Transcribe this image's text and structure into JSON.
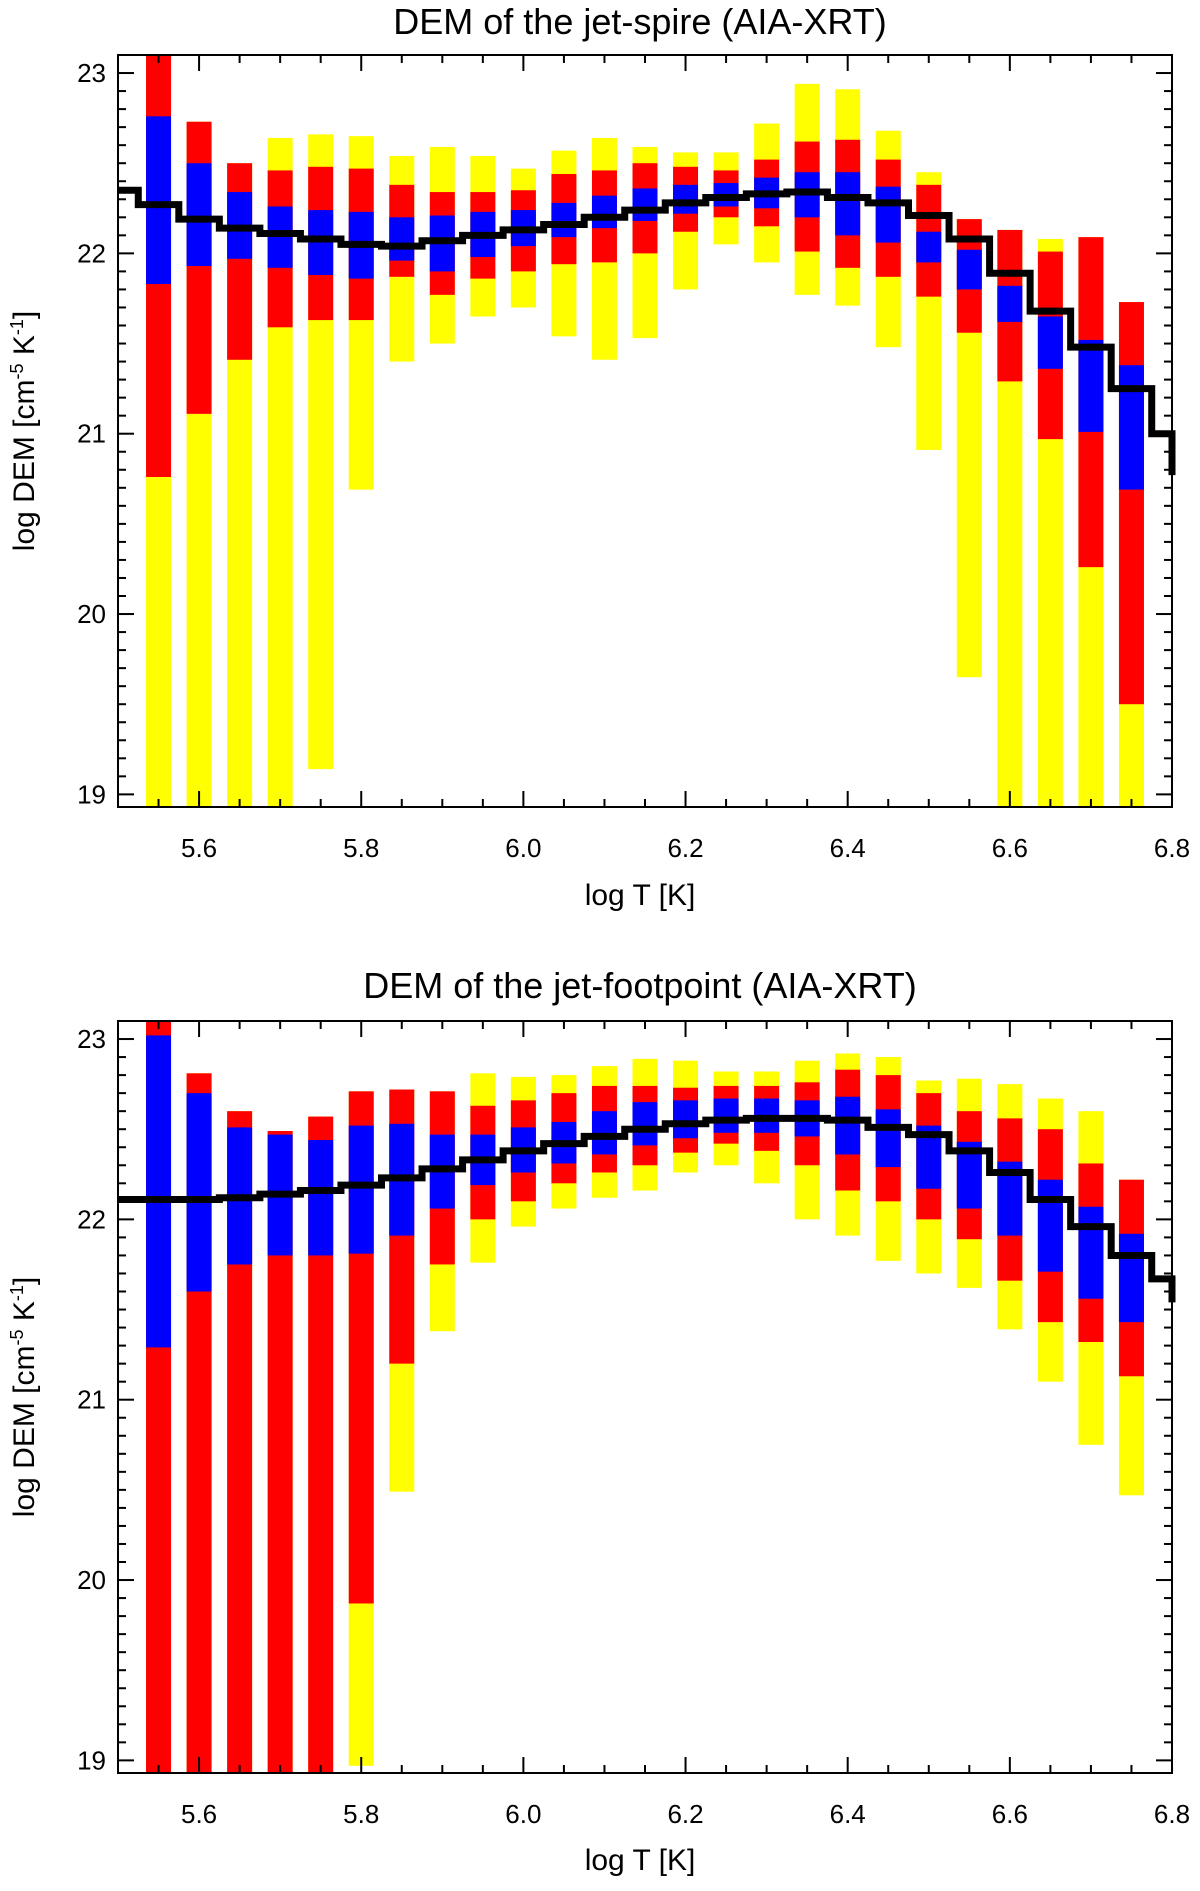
{
  "colors": {
    "outer": "#ffff00",
    "middle": "#ff0000",
    "inner": "#0000ff",
    "dem": "#000000"
  },
  "chart_data": [
    {
      "type": "bar",
      "title": "DEM of the jet-spire (AIA-XRT)",
      "xlabel": "log T [K]",
      "ylabel_main": "log DEM [cm",
      "ylabel_sup1": "-5",
      "ylabel_mid": " K",
      "ylabel_sup2": "-1",
      "ylabel_end": "]",
      "xlim": [
        5.5,
        6.8
      ],
      "ylim": [
        18.93,
        23.1
      ],
      "xticks": [
        5.6,
        5.8,
        6.0,
        6.2,
        6.4,
        6.6,
        6.8
      ],
      "xtick_labels": [
        "5.6",
        "5.8",
        "6.0",
        "6.2",
        "6.4",
        "6.6",
        "6.8"
      ],
      "yticks": [
        19,
        20,
        21,
        22,
        23
      ],
      "ytick_labels": [
        "19",
        "20",
        "21",
        "22",
        "23"
      ],
      "x": [
        5.55,
        5.6,
        5.65,
        5.7,
        5.75,
        5.8,
        5.85,
        5.9,
        5.95,
        6.0,
        6.05,
        6.1,
        6.15,
        6.2,
        6.25,
        6.3,
        6.35,
        6.4,
        6.45,
        6.5,
        6.55,
        6.6,
        6.65,
        6.7,
        6.75
      ],
      "outer_low": [
        18.93,
        18.93,
        18.93,
        18.93,
        19.14,
        20.69,
        21.4,
        21.5,
        21.65,
        21.7,
        21.54,
        21.41,
        21.53,
        21.8,
        22.05,
        21.95,
        21.77,
        21.71,
        21.48,
        20.91,
        19.65,
        18.93,
        18.93,
        18.93,
        18.93
      ],
      "middle_low": [
        20.76,
        21.11,
        21.41,
        21.59,
        21.63,
        21.63,
        21.87,
        21.77,
        21.86,
        21.9,
        21.94,
        21.95,
        22.0,
        22.12,
        22.2,
        22.15,
        22.01,
        21.92,
        21.87,
        21.76,
        21.56,
        21.29,
        20.97,
        20.26,
        19.5
      ],
      "inner_low": [
        21.83,
        21.93,
        21.97,
        21.92,
        21.88,
        21.86,
        21.96,
        21.9,
        21.98,
        22.04,
        22.09,
        22.14,
        22.18,
        22.22,
        22.26,
        22.25,
        22.2,
        22.1,
        22.06,
        21.95,
        21.8,
        21.62,
        21.36,
        21.01,
        20.69
      ],
      "inner_high": [
        22.76,
        22.5,
        22.34,
        22.26,
        22.24,
        22.23,
        22.2,
        22.21,
        22.23,
        22.24,
        22.28,
        22.32,
        22.36,
        22.38,
        22.39,
        22.42,
        22.45,
        22.45,
        22.37,
        22.12,
        22.02,
        21.82,
        21.65,
        21.52,
        21.38
      ],
      "middle_high": [
        23.1,
        22.73,
        22.5,
        22.46,
        22.48,
        22.47,
        22.38,
        22.34,
        22.34,
        22.35,
        22.44,
        22.46,
        22.5,
        22.48,
        22.46,
        22.52,
        22.62,
        22.63,
        22.52,
        22.38,
        22.19,
        22.13,
        22.01,
        22.09,
        21.73
      ],
      "outer_high": [
        23.1,
        22.73,
        22.5,
        22.64,
        22.66,
        22.65,
        22.54,
        22.59,
        22.54,
        22.47,
        22.57,
        22.64,
        22.59,
        22.56,
        22.56,
        22.72,
        22.94,
        22.91,
        22.68,
        22.45,
        22.19,
        22.13,
        22.08,
        22.09,
        21.73
      ],
      "dem_edges": [
        5.5,
        5.525,
        5.575,
        5.625,
        5.675,
        5.725,
        5.775,
        5.825,
        5.875,
        5.925,
        5.975,
        6.025,
        6.075,
        6.125,
        6.175,
        6.225,
        6.275,
        6.325,
        6.375,
        6.425,
        6.475,
        6.525,
        6.575,
        6.625,
        6.675,
        6.725,
        6.775,
        6.8
      ],
      "dem_values": [
        22.35,
        22.27,
        22.19,
        22.14,
        22.11,
        22.08,
        22.05,
        22.04,
        22.07,
        22.1,
        22.13,
        22.16,
        22.2,
        22.24,
        22.28,
        22.31,
        22.33,
        22.34,
        22.31,
        22.28,
        22.21,
        22.08,
        21.89,
        21.68,
        21.48,
        21.25,
        21.0,
        20.77
      ]
    },
    {
      "type": "bar",
      "title": "DEM of the jet-footpoint (AIA-XRT)",
      "xlabel": "log T [K]",
      "ylabel_main": "log DEM [cm",
      "ylabel_sup1": "-5",
      "ylabel_mid": " K",
      "ylabel_sup2": "-1",
      "ylabel_end": "]",
      "xlim": [
        5.5,
        6.8
      ],
      "ylim": [
        18.93,
        23.1
      ],
      "xticks": [
        5.6,
        5.8,
        6.0,
        6.2,
        6.4,
        6.6,
        6.8
      ],
      "xtick_labels": [
        "5.6",
        "5.8",
        "6.0",
        "6.2",
        "6.4",
        "6.6",
        "6.8"
      ],
      "yticks": [
        19,
        20,
        21,
        22,
        23
      ],
      "ytick_labels": [
        "19",
        "20",
        "21",
        "22",
        "23"
      ],
      "x": [
        5.55,
        5.6,
        5.65,
        5.7,
        5.75,
        5.8,
        5.85,
        5.9,
        5.95,
        6.0,
        6.05,
        6.1,
        6.15,
        6.2,
        6.25,
        6.3,
        6.35,
        6.4,
        6.45,
        6.5,
        6.55,
        6.6,
        6.65,
        6.7,
        6.75
      ],
      "outer_low": [
        18.93,
        18.93,
        18.93,
        18.93,
        18.93,
        18.97,
        20.49,
        21.38,
        21.76,
        21.96,
        22.06,
        22.12,
        22.16,
        22.26,
        22.3,
        22.2,
        22.0,
        21.91,
        21.77,
        21.7,
        21.62,
        21.39,
        21.1,
        20.75,
        20.47
      ],
      "middle_low": [
        18.93,
        18.93,
        18.93,
        18.93,
        18.93,
        19.87,
        21.2,
        21.75,
        22.0,
        22.1,
        22.2,
        22.26,
        22.3,
        22.37,
        22.42,
        22.38,
        22.3,
        22.16,
        22.1,
        22.0,
        21.89,
        21.66,
        21.43,
        21.32,
        21.13
      ],
      "inner_low": [
        21.29,
        21.6,
        21.75,
        21.8,
        21.8,
        21.81,
        21.91,
        22.06,
        22.19,
        22.26,
        22.31,
        22.36,
        22.41,
        22.45,
        22.48,
        22.48,
        22.46,
        22.36,
        22.29,
        22.17,
        22.06,
        21.91,
        21.71,
        21.56,
        21.43
      ],
      "inner_high": [
        23.02,
        22.7,
        22.51,
        22.47,
        22.44,
        22.52,
        22.53,
        22.47,
        22.47,
        22.51,
        22.54,
        22.6,
        22.65,
        22.66,
        22.67,
        22.67,
        22.66,
        22.68,
        22.61,
        22.52,
        22.43,
        22.32,
        22.22,
        22.07,
        21.92
      ],
      "middle_high": [
        23.1,
        22.81,
        22.6,
        22.49,
        22.57,
        22.71,
        22.72,
        22.71,
        22.63,
        22.66,
        22.7,
        22.74,
        22.74,
        22.73,
        22.74,
        22.74,
        22.76,
        22.83,
        22.8,
        22.7,
        22.6,
        22.56,
        22.5,
        22.31,
        22.22
      ],
      "outer_high": [
        23.1,
        22.81,
        22.6,
        22.49,
        22.57,
        22.71,
        22.72,
        22.71,
        22.81,
        22.79,
        22.8,
        22.85,
        22.89,
        22.88,
        22.82,
        22.82,
        22.88,
        22.92,
        22.9,
        22.77,
        22.78,
        22.75,
        22.67,
        22.6,
        22.22
      ],
      "dem_edges": [
        5.5,
        5.525,
        5.575,
        5.625,
        5.675,
        5.725,
        5.775,
        5.825,
        5.875,
        5.925,
        5.975,
        6.025,
        6.075,
        6.125,
        6.175,
        6.225,
        6.275,
        6.325,
        6.375,
        6.425,
        6.475,
        6.525,
        6.575,
        6.625,
        6.675,
        6.725,
        6.775,
        6.8
      ],
      "dem_values": [
        22.11,
        22.11,
        22.11,
        22.12,
        22.14,
        22.16,
        22.19,
        22.23,
        22.28,
        22.33,
        22.38,
        22.42,
        22.46,
        22.5,
        22.53,
        22.55,
        22.56,
        22.56,
        22.55,
        22.51,
        22.47,
        22.38,
        22.26,
        22.11,
        21.96,
        21.8,
        21.67,
        21.54
      ]
    }
  ]
}
